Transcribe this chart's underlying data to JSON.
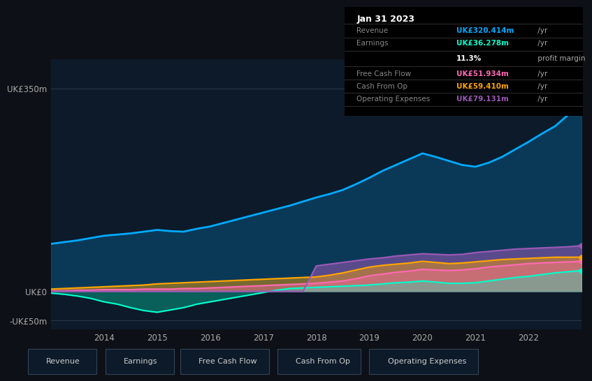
{
  "bg_color": "#0d1117",
  "plot_bg_color": "#0d1a2a",
  "title": "Jan 31 2023",
  "years": [
    2013.0,
    2013.25,
    2013.5,
    2013.75,
    2014.0,
    2014.25,
    2014.5,
    2014.75,
    2015.0,
    2015.25,
    2015.5,
    2015.75,
    2016.0,
    2016.25,
    2016.5,
    2016.75,
    2017.0,
    2017.25,
    2017.5,
    2017.75,
    2018.0,
    2018.25,
    2018.5,
    2018.75,
    2019.0,
    2019.25,
    2019.5,
    2019.75,
    2020.0,
    2020.25,
    2020.5,
    2020.75,
    2021.0,
    2021.25,
    2021.5,
    2021.75,
    2022.0,
    2022.25,
    2022.5,
    2022.75,
    2023.0
  ],
  "revenue": [
    82,
    85,
    88,
    92,
    96,
    98,
    100,
    103,
    106,
    104,
    103,
    108,
    112,
    118,
    124,
    130,
    136,
    142,
    148,
    155,
    162,
    168,
    175,
    185,
    196,
    208,
    218,
    228,
    238,
    232,
    225,
    218,
    215,
    222,
    232,
    245,
    258,
    272,
    285,
    305,
    320
  ],
  "earnings": [
    -3,
    -5,
    -8,
    -12,
    -18,
    -22,
    -28,
    -33,
    -36,
    -32,
    -28,
    -22,
    -18,
    -14,
    -10,
    -6,
    -2,
    2,
    5,
    6,
    7,
    8,
    9,
    10,
    11,
    13,
    15,
    16,
    18,
    16,
    14,
    14,
    15,
    18,
    21,
    24,
    26,
    29,
    32,
    34,
    36
  ],
  "free_cash_flow": [
    1,
    1,
    2,
    2,
    3,
    3,
    3,
    4,
    4,
    4,
    5,
    5,
    6,
    7,
    8,
    9,
    10,
    11,
    12,
    13,
    14,
    16,
    18,
    22,
    27,
    30,
    33,
    35,
    38,
    37,
    36,
    37,
    39,
    42,
    44,
    46,
    48,
    49,
    50,
    51,
    52
  ],
  "cash_from_op": [
    4,
    5,
    6,
    7,
    8,
    9,
    10,
    11,
    13,
    14,
    15,
    16,
    17,
    18,
    19,
    20,
    21,
    22,
    23,
    24,
    25,
    28,
    32,
    37,
    42,
    45,
    47,
    49,
    52,
    50,
    48,
    49,
    51,
    53,
    55,
    56,
    57,
    58,
    59,
    59,
    59
  ],
  "operating_expenses": [
    0,
    0,
    0,
    0,
    0,
    0,
    0,
    0,
    0,
    0,
    0,
    0,
    0,
    0,
    0,
    0,
    0,
    0,
    0,
    0,
    44,
    47,
    50,
    53,
    56,
    58,
    61,
    63,
    65,
    64,
    63,
    64,
    67,
    69,
    71,
    73,
    74,
    75,
    76,
    77,
    79
  ],
  "ylim": [
    -65,
    400
  ],
  "yticks": [
    -50,
    0,
    350
  ],
  "ytick_labels": [
    "-UK£50m",
    "UK£0",
    "UK£350m"
  ],
  "xtick_years": [
    2014,
    2015,
    2016,
    2017,
    2018,
    2019,
    2020,
    2021,
    2022
  ],
  "grid_lines": [
    350,
    0,
    -50
  ],
  "colors": {
    "revenue": "#00aaff",
    "earnings": "#00ffcc",
    "free_cash_flow": "#ff69b4",
    "cash_from_op": "#ffa500",
    "operating_expenses": "#9b59b6"
  },
  "legend_items": [
    {
      "label": "Revenue",
      "color": "#00aaff"
    },
    {
      "label": "Earnings",
      "color": "#00ffcc"
    },
    {
      "label": "Free Cash Flow",
      "color": "#ff69b4"
    },
    {
      "label": "Cash From Op",
      "color": "#ffa500"
    },
    {
      "label": "Operating Expenses",
      "color": "#9b59b6"
    }
  ],
  "info_box": {
    "title": "Jan 31 2023",
    "rows": [
      {
        "label": "Revenue",
        "value": "UK£320.414m",
        "suffix": " /yr",
        "value_color": "#00aaff",
        "margin_text": null
      },
      {
        "label": "Earnings",
        "value": "UK£36.278m",
        "suffix": " /yr",
        "value_color": "#00ffcc",
        "margin_text": null
      },
      {
        "label": "",
        "value": "11.3%",
        "suffix": " profit margin",
        "value_color": "#ffffff",
        "margin_text": "bold"
      },
      {
        "label": "Free Cash Flow",
        "value": "UK£51.934m",
        "suffix": " /yr",
        "value_color": "#ff69b4",
        "margin_text": null
      },
      {
        "label": "Cash From Op",
        "value": "UK£59.410m",
        "suffix": " /yr",
        "value_color": "#ffa500",
        "margin_text": null
      },
      {
        "label": "Operating Expenses",
        "value": "UK£79.131m",
        "suffix": " /yr",
        "value_color": "#9b59b6",
        "margin_text": null
      }
    ]
  }
}
